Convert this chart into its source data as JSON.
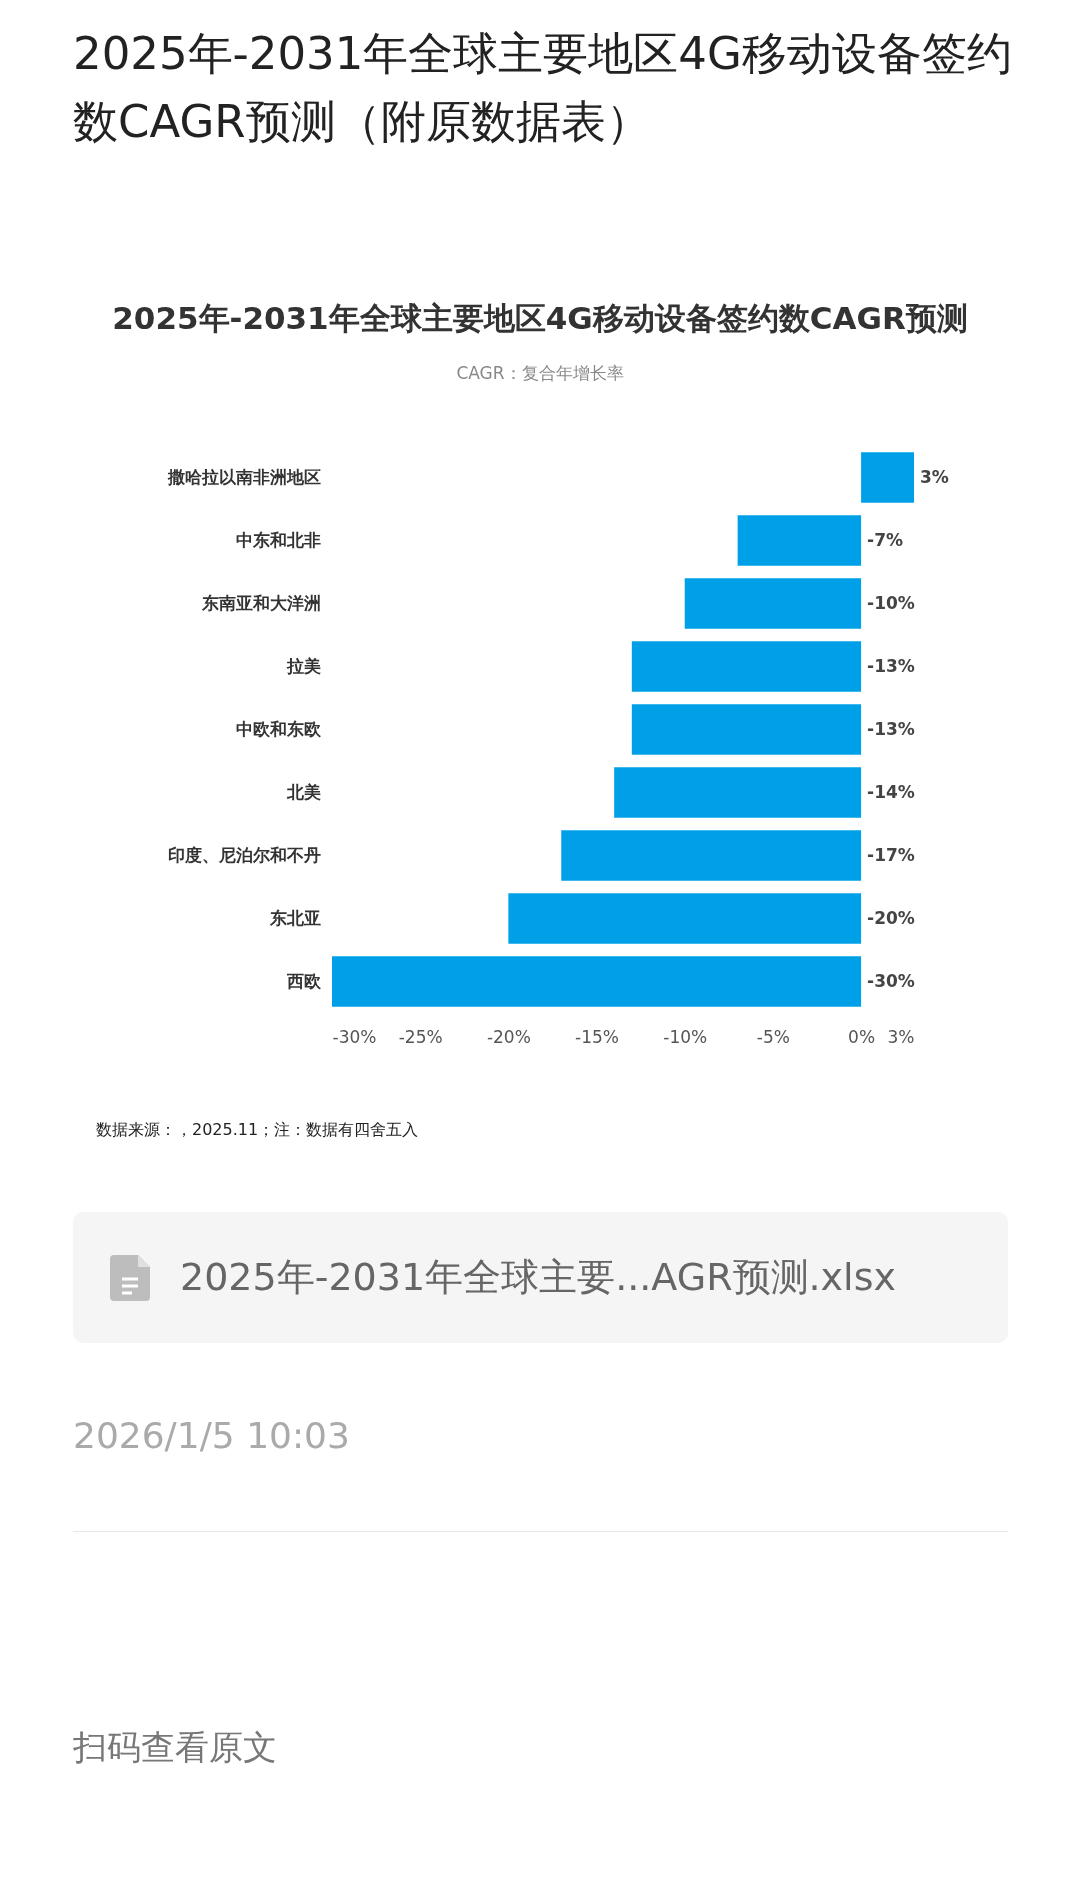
{
  "chart_data": {
    "type": "bar",
    "orientation": "horizontal",
    "title": "2025年-2031年全球主要地区4G移动设备签约数CAGR预测",
    "subtitle": "CAGR：复合年增长率",
    "categories": [
      "撒哈拉以南非洲地区",
      "中东和北非",
      "东南亚和大洋洲",
      "拉美",
      "中欧和东欧",
      "北美",
      "印度、尼泊尔和不丹",
      "东北亚",
      "西欧"
    ],
    "values": [
      3,
      -7,
      -10,
      -13,
      -13,
      -14,
      -17,
      -20,
      -30
    ],
    "value_labels": [
      "3%",
      "-7%",
      "-10%",
      "-13%",
      "-13%",
      "-14%",
      "-17%",
      "-20%",
      "-30%"
    ],
    "color": "#00a0e9",
    "xlim": [
      -30,
      3
    ],
    "xticks": [
      {
        "value": -30,
        "label": "-30%"
      },
      {
        "value": -25,
        "label": "-25%"
      },
      {
        "value": -20,
        "label": "-20%"
      },
      {
        "value": -15,
        "label": "-15%"
      },
      {
        "value": -10,
        "label": "-10%"
      },
      {
        "value": -5,
        "label": "-5%"
      },
      {
        "value": 0,
        "label": "0%"
      },
      {
        "value": 3,
        "label": "3%"
      }
    ],
    "grid": false,
    "annotations": [
      "2025年-2031年全球主要地区4G移动设备签约数CAGR预测（附原数据表）",
      "数据来源：，2025.11；注：数据有四舍五入",
      "2025年-2031年全球主要...AGR预测.xlsx",
      "2026/1/5 10:03",
      "扫码查看原文"
    ]
  }
}
